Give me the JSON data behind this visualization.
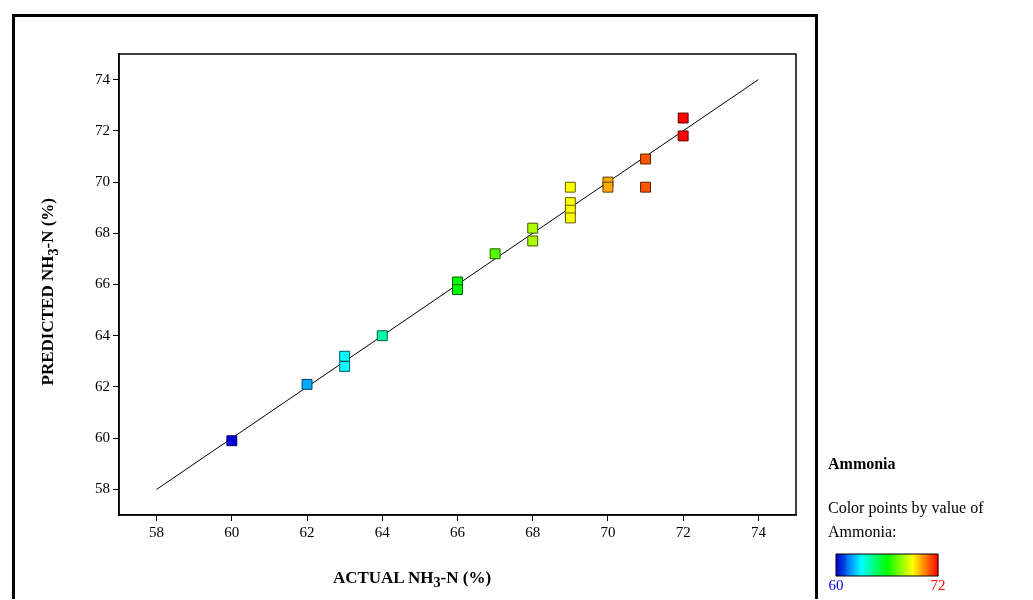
{
  "chart_data": {
    "type": "scatter",
    "xlabel": "ACTUAL NH$_{3}$-N (%)",
    "ylabel": "PREDICTED NH$_{3}$-N  (%)",
    "legend_title": "Ammonia",
    "clabel": "Color points by value of Ammonia:",
    "xlim": [
      57,
      75
    ],
    "ylim": [
      57,
      75
    ],
    "xticks": [
      58,
      60,
      62,
      64,
      66,
      68,
      70,
      72,
      74
    ],
    "yticks": [
      58,
      60,
      62,
      64,
      66,
      68,
      70,
      72,
      74
    ],
    "grid": false,
    "legend": false,
    "marker": "square",
    "clim": [
      60,
      72
    ],
    "cticks": [
      60,
      72
    ],
    "series": [
      {
        "x": [
          60,
          62,
          63,
          63,
          64,
          66,
          66,
          67,
          68,
          68,
          69,
          69,
          69,
          69,
          70,
          70,
          71,
          71,
          72,
          72
        ],
        "values": [
          59.9,
          62.1,
          63.2,
          62.8,
          64.0,
          66.1,
          65.8,
          67.2,
          68.2,
          67.7,
          69.8,
          69.2,
          68.9,
          68.6,
          70.0,
          69.8,
          70.9,
          69.8,
          72.5,
          71.8
        ],
        "cvalues": [
          60,
          62,
          63,
          63,
          64,
          66,
          66,
          67,
          68,
          68,
          69,
          69,
          69,
          69,
          70,
          70,
          71,
          71,
          72,
          72
        ],
        "colors": [
          "#0000d6",
          "#00aaff",
          "#00ffff",
          "#00ffff",
          "#00ffaa",
          "#00ff00",
          "#00ff00",
          "#55ff00",
          "#aaff00",
          "#aaff00",
          "#ffff00",
          "#ffff00",
          "#ffff00",
          "#ffff00",
          "#ffaa00",
          "#ffaa00",
          "#ff5500",
          "#ff5500",
          "#ff0000",
          "#ff0000"
        ]
      },
      {
        "type": "line",
        "color": "#000000",
        "x": [
          58,
          74
        ],
        "values": [
          58,
          74
        ],
        "line_style": "solid",
        "marker": "none"
      }
    ]
  }
}
